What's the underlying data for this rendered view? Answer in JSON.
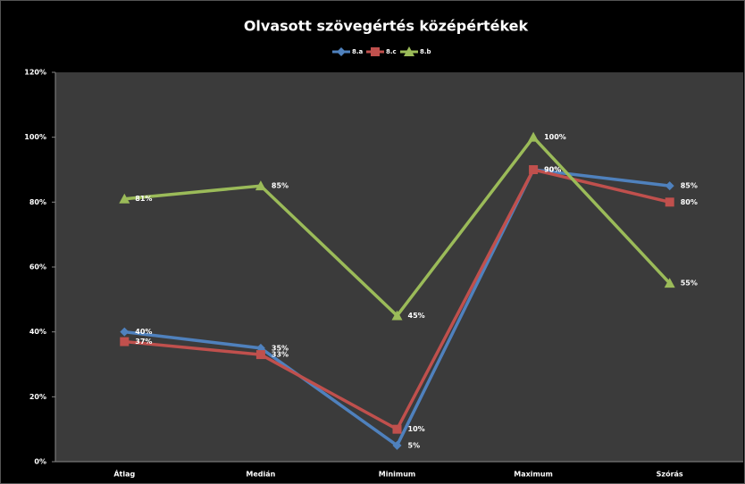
{
  "chart_data": {
    "type": "line",
    "title": "Olvasott szövegértés középértékek",
    "categories": [
      "Átlag",
      "Medián",
      "Minimum",
      "Maximum",
      "Szórás"
    ],
    "series": [
      {
        "name": "8.a",
        "color": "#4f81bd",
        "marker": "diamond",
        "values": [
          40,
          35,
          5,
          90,
          85
        ],
        "value_labels": [
          "40%",
          "35%",
          "5%",
          "90%",
          "85%"
        ]
      },
      {
        "name": "8.c",
        "color": "#c0504d",
        "marker": "square",
        "values": [
          37,
          33,
          10,
          90,
          80
        ],
        "value_labels": [
          "37%",
          "33%",
          "10%",
          "90%",
          "80%"
        ]
      },
      {
        "name": "8.b",
        "color": "#9bbb59",
        "marker": "triangle",
        "values": [
          81,
          85,
          45,
          100,
          55
        ],
        "value_labels": [
          "81%",
          "85%",
          "45%",
          "100%",
          "55%"
        ]
      }
    ],
    "ylim": [
      0,
      120
    ],
    "yticks": [
      {
        "value": 0,
        "label": "0%"
      },
      {
        "value": 20,
        "label": "20%"
      },
      {
        "value": 40,
        "label": "40%"
      },
      {
        "value": 60,
        "label": "60%"
      },
      {
        "value": 80,
        "label": "80%"
      },
      {
        "value": 100,
        "label": "100%"
      },
      {
        "value": 120,
        "label": "120%"
      }
    ],
    "legend": "top"
  }
}
